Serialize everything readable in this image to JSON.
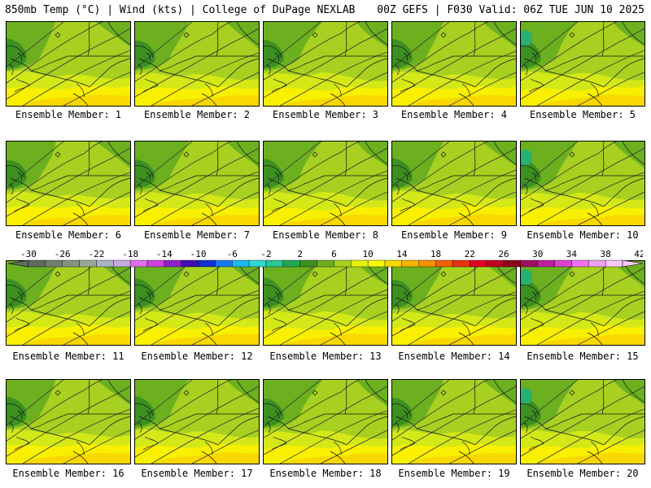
{
  "header": {
    "left": "850mb Temp (°C) | Wind (kts) | College of DuPage NEXLAB",
    "right": "00Z GEFS | F030 Valid: 06Z TUE JUN 10 2025"
  },
  "colorbar": {
    "ticks": [
      "-30",
      "-26",
      "-22",
      "-18",
      "-14",
      "-10",
      "-6",
      "-2",
      "2",
      "6",
      "10",
      "14",
      "18",
      "22",
      "26",
      "30",
      "34",
      "38",
      "42"
    ],
    "colors": [
      "#5e6b5e",
      "#708070",
      "#849484",
      "#98a898",
      "#aab4c4",
      "#c8a8e0",
      "#e070f0",
      "#d040e0",
      "#9020c8",
      "#4010b0",
      "#1030d0",
      "#1878f0",
      "#20b8f0",
      "#30d8d0",
      "#28c898",
      "#20a850",
      "#3c9020",
      "#6cb020",
      "#a8d020",
      "#e8f010",
      "#f8f800",
      "#f8d800",
      "#f8b400",
      "#f89000",
      "#f06000",
      "#e83010",
      "#e00020",
      "#c00020",
      "#900018",
      "#a01060",
      "#c020a0",
      "#e040d0",
      "#f070f0",
      "#f0a0f0",
      "#f8c8f8"
    ]
  },
  "members": [
    {
      "label": "Ensemble Member: 1"
    },
    {
      "label": "Ensemble Member: 2"
    },
    {
      "label": "Ensemble Member: 3"
    },
    {
      "label": "Ensemble Member: 4"
    },
    {
      "label": "Ensemble Member: 5"
    },
    {
      "label": "Ensemble Member: 6"
    },
    {
      "label": "Ensemble Member: 7"
    },
    {
      "label": "Ensemble Member: 8"
    },
    {
      "label": "Ensemble Member: 9"
    },
    {
      "label": "Ensemble Member: 10"
    },
    {
      "label": "Ensemble Member: 11"
    },
    {
      "label": "Ensemble Member: 12"
    },
    {
      "label": "Ensemble Member: 13"
    },
    {
      "label": "Ensemble Member: 14"
    },
    {
      "label": "Ensemble Member: 15"
    },
    {
      "label": "Ensemble Member: 16"
    },
    {
      "label": "Ensemble Member: 17"
    },
    {
      "label": "Ensemble Member: 18"
    },
    {
      "label": "Ensemble Member: 19"
    },
    {
      "label": "Ensemble Member: 20"
    }
  ],
  "map_colors": {
    "dark_green": "#3c9020",
    "green": "#6cb020",
    "yellow_green": "#a8d020",
    "lime": "#d4e818",
    "yellow": "#f8f000",
    "gold": "#f8d800",
    "orange": "#f8c000",
    "teal": "#28b070",
    "contour": "#333333",
    "border": "#111111"
  }
}
